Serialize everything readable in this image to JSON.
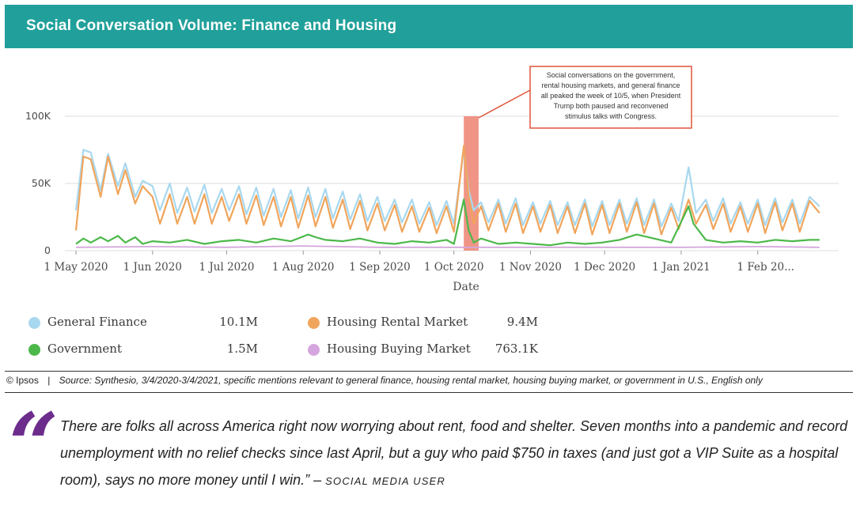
{
  "header": {
    "title": "Social Conversation Volume: Finance and Housing"
  },
  "annotation": {
    "lines": [
      "Social conversations on the government,",
      "rental housing markets, and general finance",
      "all peaked the week of 10/5, when President",
      "Trump both paused and reconvened",
      "stimulus talks with Congress."
    ],
    "highlight_start": "2020-10-05",
    "highlight_end": "2020-10-11"
  },
  "colors": {
    "header_bg": "#21a09b",
    "general_finance": "#a8d8ef",
    "housing_rental_market": "#f0a55c",
    "government": "#4cb84a",
    "housing_buying_market": "#d5a6dd",
    "highlight": "#ee8a78",
    "annotation_border": "#e0543a",
    "quote_mark": "#6c2c8c"
  },
  "chart_data": {
    "type": "line",
    "x_start": "2020-05-01",
    "x_end": "2021-02-28",
    "xlabel": "Date",
    "ylabel": "",
    "ylim": [
      0,
      100000
    ],
    "yticks": [
      "100K",
      "50K",
      "0"
    ],
    "xticks": [
      "1 May 2020",
      "1 Jun 2020",
      "1 Jul 2020",
      "1 Aug 2020",
      "1 Sep 2020",
      "1 Oct 2020",
      "1 Nov 2020",
      "1 Dec 2020",
      "1 Jan 2021",
      "1 Feb 20..."
    ],
    "grid": true,
    "series": [
      {
        "name": "General Finance",
        "color": "#a8d8ef",
        "total": "10.1M",
        "x": [
          "2020-05-01",
          "2020-05-04",
          "2020-05-07",
          "2020-05-11",
          "2020-05-14",
          "2020-05-18",
          "2020-05-21",
          "2020-05-25",
          "2020-05-28",
          "2020-06-01",
          "2020-06-04",
          "2020-06-08",
          "2020-06-11",
          "2020-06-15",
          "2020-06-18",
          "2020-06-22",
          "2020-06-25",
          "2020-06-29",
          "2020-07-02",
          "2020-07-06",
          "2020-07-09",
          "2020-07-13",
          "2020-07-16",
          "2020-07-20",
          "2020-07-23",
          "2020-07-27",
          "2020-07-30",
          "2020-08-03",
          "2020-08-06",
          "2020-08-10",
          "2020-08-13",
          "2020-08-17",
          "2020-08-20",
          "2020-08-24",
          "2020-08-27",
          "2020-08-31",
          "2020-09-03",
          "2020-09-07",
          "2020-09-10",
          "2020-09-14",
          "2020-09-17",
          "2020-09-21",
          "2020-09-24",
          "2020-09-28",
          "2020-10-01",
          "2020-10-05",
          "2020-10-07",
          "2020-10-09",
          "2020-10-12",
          "2020-10-15",
          "2020-10-19",
          "2020-10-22",
          "2020-10-26",
          "2020-10-29",
          "2020-11-02",
          "2020-11-05",
          "2020-11-09",
          "2020-11-12",
          "2020-11-16",
          "2020-11-19",
          "2020-11-23",
          "2020-11-26",
          "2020-11-30",
          "2020-12-03",
          "2020-12-07",
          "2020-12-10",
          "2020-12-14",
          "2020-12-17",
          "2020-12-21",
          "2020-12-24",
          "2020-12-28",
          "2020-12-31",
          "2021-01-04",
          "2021-01-07",
          "2021-01-11",
          "2021-01-14",
          "2021-01-18",
          "2021-01-21",
          "2021-01-25",
          "2021-01-28",
          "2021-02-01",
          "2021-02-04",
          "2021-02-08",
          "2021-02-11",
          "2021-02-15",
          "2021-02-18",
          "2021-02-22",
          "2021-02-26"
        ],
        "values": [
          30000,
          75000,
          73000,
          45000,
          72000,
          48000,
          65000,
          40000,
          52000,
          48000,
          30000,
          50000,
          28000,
          47000,
          29000,
          49000,
          28000,
          46000,
          30000,
          48000,
          27000,
          47000,
          26000,
          46000,
          25000,
          45000,
          24000,
          47000,
          25000,
          46000,
          24000,
          44000,
          23000,
          42000,
          22000,
          40000,
          22000,
          38000,
          21000,
          38000,
          20000,
          36000,
          19000,
          37000,
          20000,
          75000,
          45000,
          30000,
          36000,
          21000,
          38000,
          20000,
          39000,
          19000,
          36000,
          20000,
          37000,
          19000,
          36000,
          19000,
          38000,
          18000,
          37000,
          19000,
          38000,
          20000,
          39000,
          19000,
          38000,
          18000,
          35000,
          22000,
          62000,
          28000,
          38000,
          22000,
          39000,
          20000,
          36000,
          20000,
          38000,
          19000,
          39000,
          21000,
          38000,
          20000,
          40000,
          33000
        ]
      },
      {
        "name": "Housing Rental Market",
        "color": "#f0a55c",
        "total": "9.4M",
        "x": [
          "2020-05-01",
          "2020-05-04",
          "2020-05-07",
          "2020-05-11",
          "2020-05-14",
          "2020-05-18",
          "2020-05-21",
          "2020-05-25",
          "2020-05-28",
          "2020-06-01",
          "2020-06-04",
          "2020-06-08",
          "2020-06-11",
          "2020-06-15",
          "2020-06-18",
          "2020-06-22",
          "2020-06-25",
          "2020-06-29",
          "2020-07-02",
          "2020-07-06",
          "2020-07-09",
          "2020-07-13",
          "2020-07-16",
          "2020-07-20",
          "2020-07-23",
          "2020-07-27",
          "2020-07-30",
          "2020-08-03",
          "2020-08-06",
          "2020-08-10",
          "2020-08-13",
          "2020-08-17",
          "2020-08-20",
          "2020-08-24",
          "2020-08-27",
          "2020-08-31",
          "2020-09-03",
          "2020-09-07",
          "2020-09-10",
          "2020-09-14",
          "2020-09-17",
          "2020-09-21",
          "2020-09-24",
          "2020-09-28",
          "2020-10-01",
          "2020-10-05",
          "2020-10-07",
          "2020-10-09",
          "2020-10-12",
          "2020-10-15",
          "2020-10-19",
          "2020-10-22",
          "2020-10-26",
          "2020-10-29",
          "2020-11-02",
          "2020-11-05",
          "2020-11-09",
          "2020-11-12",
          "2020-11-16",
          "2020-11-19",
          "2020-11-23",
          "2020-11-26",
          "2020-11-30",
          "2020-12-03",
          "2020-12-07",
          "2020-12-10",
          "2020-12-14",
          "2020-12-17",
          "2020-12-21",
          "2020-12-24",
          "2020-12-28",
          "2020-12-31",
          "2021-01-04",
          "2021-01-07",
          "2021-01-11",
          "2021-01-14",
          "2021-01-18",
          "2021-01-21",
          "2021-01-25",
          "2021-01-28",
          "2021-02-01",
          "2021-02-04",
          "2021-02-08",
          "2021-02-11",
          "2021-02-15",
          "2021-02-18",
          "2021-02-22",
          "2021-02-26"
        ],
        "values": [
          15000,
          70000,
          68000,
          40000,
          70000,
          42000,
          60000,
          35000,
          48000,
          40000,
          20000,
          42000,
          20000,
          40000,
          20000,
          42000,
          20000,
          40000,
          22000,
          42000,
          20000,
          41000,
          19000,
          40000,
          18000,
          40000,
          17000,
          41000,
          18000,
          40000,
          17000,
          38000,
          16000,
          37000,
          15000,
          35000,
          15000,
          34000,
          14000,
          33000,
          14000,
          32000,
          13000,
          33000,
          14000,
          78000,
          40000,
          20000,
          33000,
          15000,
          35000,
          14000,
          35000,
          13000,
          33000,
          14000,
          34000,
          13000,
          33000,
          13000,
          35000,
          12000,
          34000,
          13000,
          35000,
          14000,
          36000,
          13000,
          35000,
          12000,
          32000,
          16000,
          38000,
          20000,
          34000,
          16000,
          35000,
          14000,
          33000,
          14000,
          35000,
          13000,
          36000,
          15000,
          35000,
          14000,
          37000,
          28000
        ]
      },
      {
        "name": "Government",
        "color": "#4cb84a",
        "total": "1.5M",
        "x": [
          "2020-05-01",
          "2020-05-04",
          "2020-05-07",
          "2020-05-11",
          "2020-05-14",
          "2020-05-18",
          "2020-05-21",
          "2020-05-25",
          "2020-05-28",
          "2020-06-01",
          "2020-06-08",
          "2020-06-15",
          "2020-06-22",
          "2020-06-29",
          "2020-07-06",
          "2020-07-13",
          "2020-07-20",
          "2020-07-27",
          "2020-08-03",
          "2020-08-06",
          "2020-08-10",
          "2020-08-17",
          "2020-08-24",
          "2020-08-31",
          "2020-09-07",
          "2020-09-14",
          "2020-09-21",
          "2020-09-28",
          "2020-10-01",
          "2020-10-05",
          "2020-10-07",
          "2020-10-09",
          "2020-10-12",
          "2020-10-19",
          "2020-10-26",
          "2020-11-02",
          "2020-11-09",
          "2020-11-16",
          "2020-11-23",
          "2020-11-30",
          "2020-12-07",
          "2020-12-14",
          "2020-12-21",
          "2020-12-28",
          "2021-01-04",
          "2021-01-06",
          "2021-01-11",
          "2021-01-18",
          "2021-01-25",
          "2021-02-01",
          "2021-02-08",
          "2021-02-15",
          "2021-02-22",
          "2021-02-26"
        ],
        "values": [
          5000,
          9000,
          6000,
          10000,
          7000,
          11000,
          6000,
          10000,
          5000,
          7000,
          6000,
          8000,
          5000,
          7000,
          8000,
          6000,
          9000,
          7000,
          12000,
          10000,
          8000,
          7000,
          9000,
          6000,
          5000,
          7000,
          6000,
          8000,
          5000,
          38000,
          15000,
          6000,
          9000,
          5000,
          6000,
          5000,
          4000,
          6000,
          5000,
          6000,
          8000,
          12000,
          9000,
          6000,
          33000,
          20000,
          8000,
          6000,
          7000,
          6000,
          8000,
          7000,
          8000,
          8000
        ]
      },
      {
        "name": "Housing Buying Market",
        "color": "#d5a6dd",
        "total": "763.1K",
        "x": [
          "2020-05-01",
          "2020-06-01",
          "2020-07-01",
          "2020-08-01",
          "2020-09-01",
          "2020-10-01",
          "2020-11-01",
          "2020-12-01",
          "2021-01-01",
          "2021-02-01",
          "2021-02-26"
        ],
        "values": [
          2500,
          3000,
          2500,
          3500,
          2500,
          2500,
          2500,
          2500,
          2500,
          3000,
          2500
        ]
      }
    ]
  },
  "source": {
    "brand": "© Ipsos",
    "separator": "|",
    "text": "Source: Synthesio, 3/4/2020-3/4/2021, specific mentions relevant to general finance, housing rental market, housing buying market, or government in U.S., English only"
  },
  "quote": {
    "mark": "“",
    "text": "There are folks all across America right now worrying about rent, food and shelter. Seven months into a pandemic and record unemployment with no relief checks since last April, but a guy who paid $750 in taxes (and just got a VIP Suite as a hospital room), says no more money until I win.” –",
    "author": "SOCIAL MEDIA USER"
  }
}
